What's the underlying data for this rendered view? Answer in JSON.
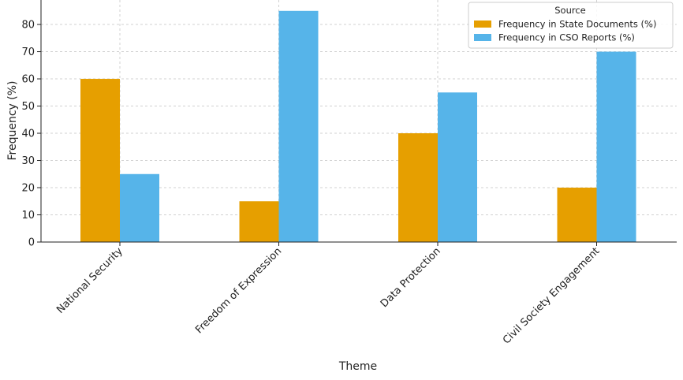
{
  "chart_data": {
    "type": "bar",
    "title": "",
    "xlabel": "Theme",
    "ylabel": "Frequency (%)",
    "categories": [
      "National Security",
      "Freedom of Expression",
      "Data Protection",
      "Civil Society Engagement"
    ],
    "series": [
      {
        "name": "Frequency in State Documents (%)",
        "values": [
          60,
          15,
          40,
          20
        ],
        "color": "#E69F00"
      },
      {
        "name": "Frequency in CSO Reports (%)",
        "values": [
          25,
          85,
          55,
          70
        ],
        "color": "#56B4E9"
      }
    ],
    "ylim": [
      0,
      89
    ],
    "yticks": [
      0,
      10,
      20,
      30,
      40,
      50,
      60,
      70,
      80
    ],
    "grid": true,
    "legend": {
      "title": "Source",
      "position": "top-right"
    }
  }
}
